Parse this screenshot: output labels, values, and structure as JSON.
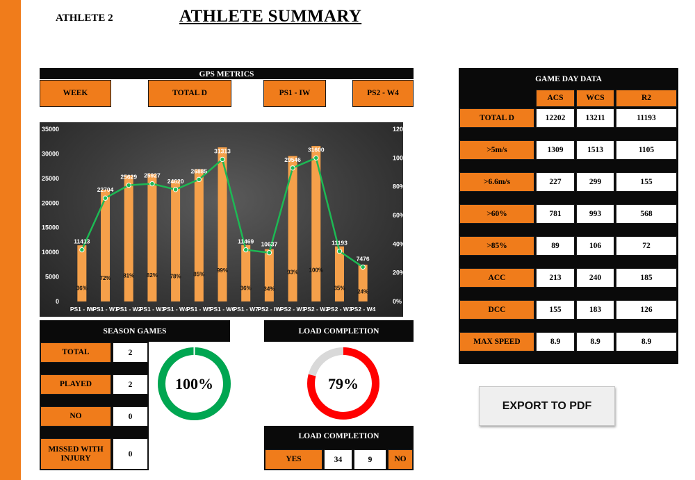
{
  "header": {
    "athlete": "ATHLETE 2",
    "title": "ATHLETE SUMMARY"
  },
  "colors": {
    "accent": "#f07c1b",
    "bar": "#f5a04a",
    "line": "#1db954",
    "complete": "#00a651",
    "incomplete": "#ff0000",
    "remaining": "#d9d9d9"
  },
  "gps": {
    "title": "GPS METRICS",
    "filters": {
      "week": "WEEK",
      "metric": "TOTAL D",
      "from": "PS1 - IW",
      "to": "PS2 - W4"
    }
  },
  "chart_data": {
    "type": "bar",
    "categories": [
      "PS1 - IW",
      "PS1 - W1",
      "PS1 - W2",
      "PS1 - W3",
      "PS1 - W4",
      "PS1 - W5",
      "PS1 - W6",
      "PS1 - W7",
      "PS2 - IW",
      "PS2 - W1",
      "PS2 - W2",
      "PS2 - W3",
      "PS2 - W4"
    ],
    "series": [
      {
        "values": [
          11413,
          22704,
          25629,
          25927,
          24620,
          26885,
          31313,
          11469,
          10637,
          29546,
          31600,
          11193,
          7476
        ],
        "labels": [
          "36%",
          "72%",
          "81%",
          "82%",
          "78%",
          "85%",
          "99%",
          "36%",
          "34%",
          "93%",
          "100%",
          "35%",
          "24%"
        ],
        "axis": "left",
        "color": "#f5a04a"
      },
      {
        "type": "line",
        "values": [
          36,
          72,
          81,
          82,
          78,
          85,
          99,
          36,
          34,
          93,
          100,
          35,
          24
        ],
        "axis": "right",
        "color": "#1db954"
      }
    ],
    "ylim": [
      0,
      35000
    ],
    "yticks": [
      "0",
      "5000",
      "10000",
      "15000",
      "20000",
      "25000",
      "30000",
      "35000"
    ],
    "y2lim": [
      0,
      120
    ],
    "y2ticks": [
      "0%",
      "20%",
      "40%",
      "60%",
      "80%",
      "100%",
      "120%"
    ],
    "grid": false
  },
  "season": {
    "title": "SEASON GAMES",
    "rows": [
      {
        "label": "TOTAL",
        "value": "2"
      },
      {
        "label": "PLAYED",
        "value": "2"
      },
      {
        "label": "NO",
        "value": "0"
      },
      {
        "label": "MISSED WITH INJURY",
        "value": "0"
      }
    ],
    "played_pct": "100%",
    "played_fraction": 1.0
  },
  "load": {
    "title": "LOAD COMPLETION",
    "pct": "79%",
    "fraction": 0.79,
    "table_title": "LOAD COMPLETION",
    "yes_label": "YES",
    "yes_value": "34",
    "no_value": "9",
    "no_label": "NO"
  },
  "game_day": {
    "title": "GAME DAY DATA",
    "columns": [
      "ACS",
      "WCS",
      "R2"
    ],
    "rows": [
      {
        "label": "TOTAL D",
        "values": [
          "12202",
          "13211",
          "11193"
        ]
      },
      {
        "label": ">5m/s",
        "values": [
          "1309",
          "1513",
          "1105"
        ]
      },
      {
        "label": ">6.6m/s",
        "values": [
          "227",
          "299",
          "155"
        ]
      },
      {
        "label": ">60%",
        "values": [
          "781",
          "993",
          "568"
        ]
      },
      {
        "label": ">85%",
        "values": [
          "89",
          "106",
          "72"
        ]
      },
      {
        "label": "ACC",
        "values": [
          "213",
          "240",
          "185"
        ]
      },
      {
        "label": "DCC",
        "values": [
          "155",
          "183",
          "126"
        ]
      },
      {
        "label": "MAX SPEED",
        "values": [
          "8.9",
          "8.9",
          "8.9"
        ]
      }
    ]
  },
  "export": {
    "label": "EXPORT TO PDF"
  }
}
